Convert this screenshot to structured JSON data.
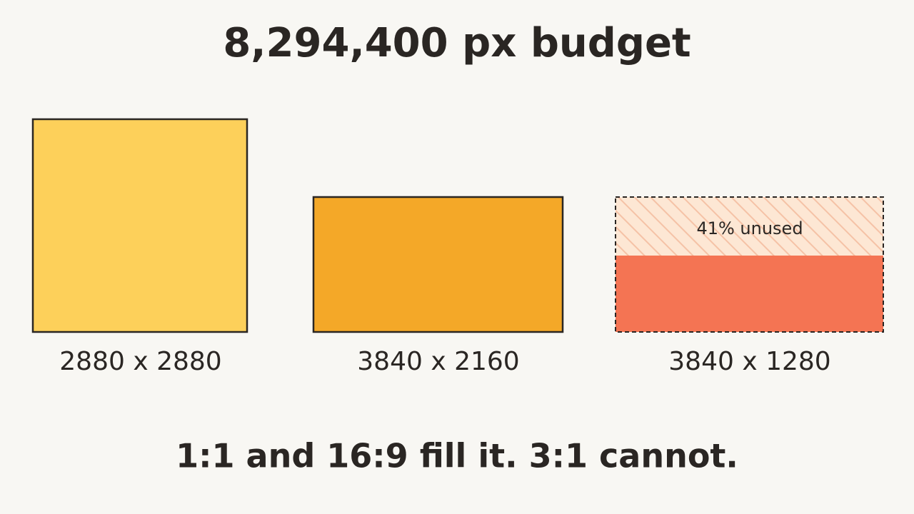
{
  "title": "8,294,400 px budget",
  "panels": [
    {
      "label": "2880 x 2880"
    },
    {
      "label": "3840 x 2160"
    },
    {
      "label": "3840 x 1280",
      "annotation": "41% unused"
    }
  ],
  "caption": "1:1 and 16:9 fill it. 3:1 cannot."
}
